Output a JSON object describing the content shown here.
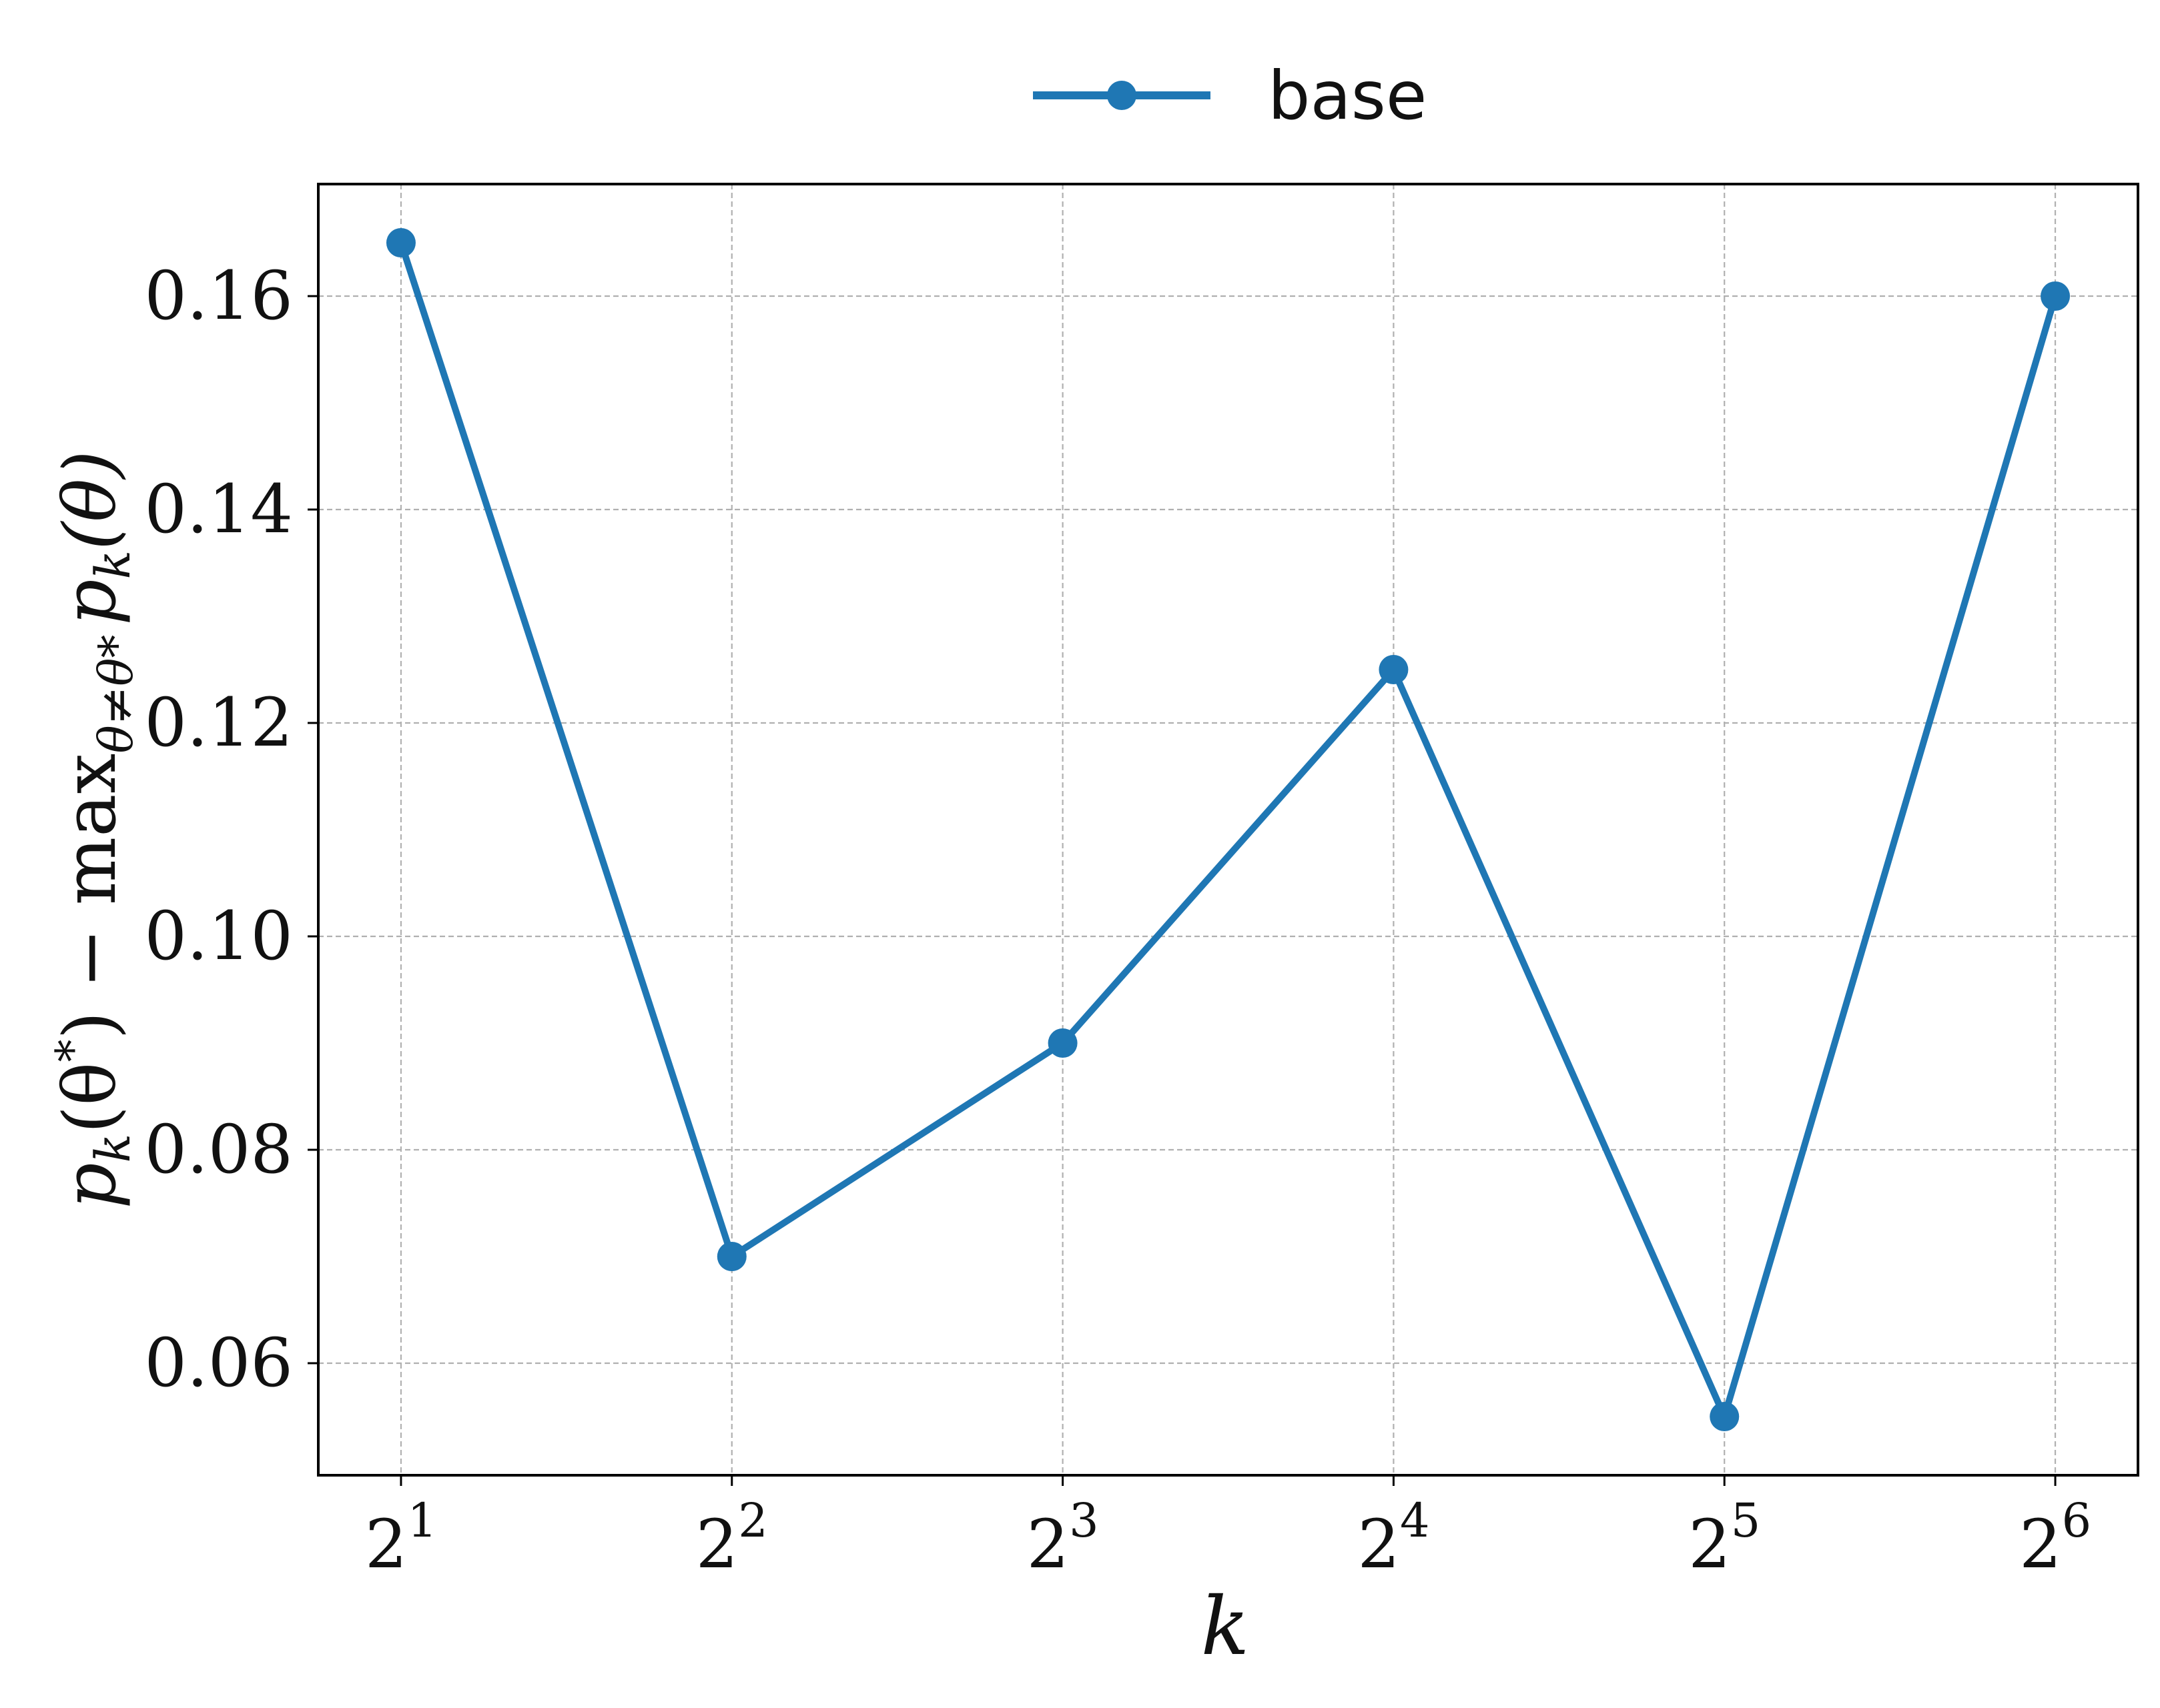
{
  "chart_data": {
    "type": "line",
    "title": "",
    "xlabel": "k",
    "ylabel": {
      "p": "p",
      "k": "k",
      "theta_star_open": "(θ",
      "star": "*",
      "close_minus_max": ") − max",
      "sub_constraint": "θ≠θ*",
      "p2": "p",
      "k2": "k",
      "theta_paren": "(θ)"
    },
    "x_scale": "log2",
    "x": [
      2,
      4,
      8,
      16,
      32,
      64
    ],
    "x_ticks": [
      {
        "base": "2",
        "exp": "1"
      },
      {
        "base": "2",
        "exp": "2"
      },
      {
        "base": "2",
        "exp": "3"
      },
      {
        "base": "2",
        "exp": "4"
      },
      {
        "base": "2",
        "exp": "5"
      },
      {
        "base": "2",
        "exp": "6"
      }
    ],
    "y_ticks": [
      "0.06",
      "0.08",
      "0.10",
      "0.12",
      "0.14",
      "0.16"
    ],
    "y_tick_values": [
      0.06,
      0.08,
      0.1,
      0.12,
      0.14,
      0.16
    ],
    "ylim": [
      0.0495,
      0.1705
    ],
    "xlim_exp": [
      0.75,
      6.25
    ],
    "grid": true,
    "legend_position": "top-center",
    "series": [
      {
        "name": "base",
        "color": "#1f77b4",
        "marker": "circle",
        "values": [
          0.165,
          0.07,
          0.09,
          0.125,
          0.055,
          0.16
        ]
      }
    ]
  }
}
